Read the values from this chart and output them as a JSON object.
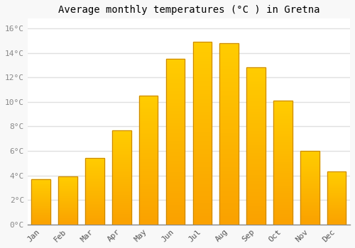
{
  "months": [
    "Jan",
    "Feb",
    "Mar",
    "Apr",
    "May",
    "Jun",
    "Jul",
    "Aug",
    "Sep",
    "Oct",
    "Nov",
    "Dec"
  ],
  "values": [
    3.7,
    3.9,
    5.4,
    7.7,
    10.5,
    13.5,
    14.9,
    14.8,
    12.8,
    10.1,
    6.0,
    4.3
  ],
  "bar_color": "#FFAA00",
  "bar_color_light": "#FFD040",
  "bar_edge_color": "#CC8800",
  "title": "Average monthly temperatures (°C ) in Gretna",
  "ylabel_ticks": [
    "0°C",
    "2°C",
    "4°C",
    "6°C",
    "8°C",
    "10°C",
    "12°C",
    "14°C",
    "16°C"
  ],
  "ytick_values": [
    0,
    2,
    4,
    6,
    8,
    10,
    12,
    14,
    16
  ],
  "ylim": [
    0,
    16.8
  ],
  "background_color": "#f8f8f8",
  "plot_bg_color": "#ffffff",
  "grid_color": "#e0e0e0",
  "title_fontsize": 10,
  "tick_fontsize": 8,
  "bar_width": 0.7
}
